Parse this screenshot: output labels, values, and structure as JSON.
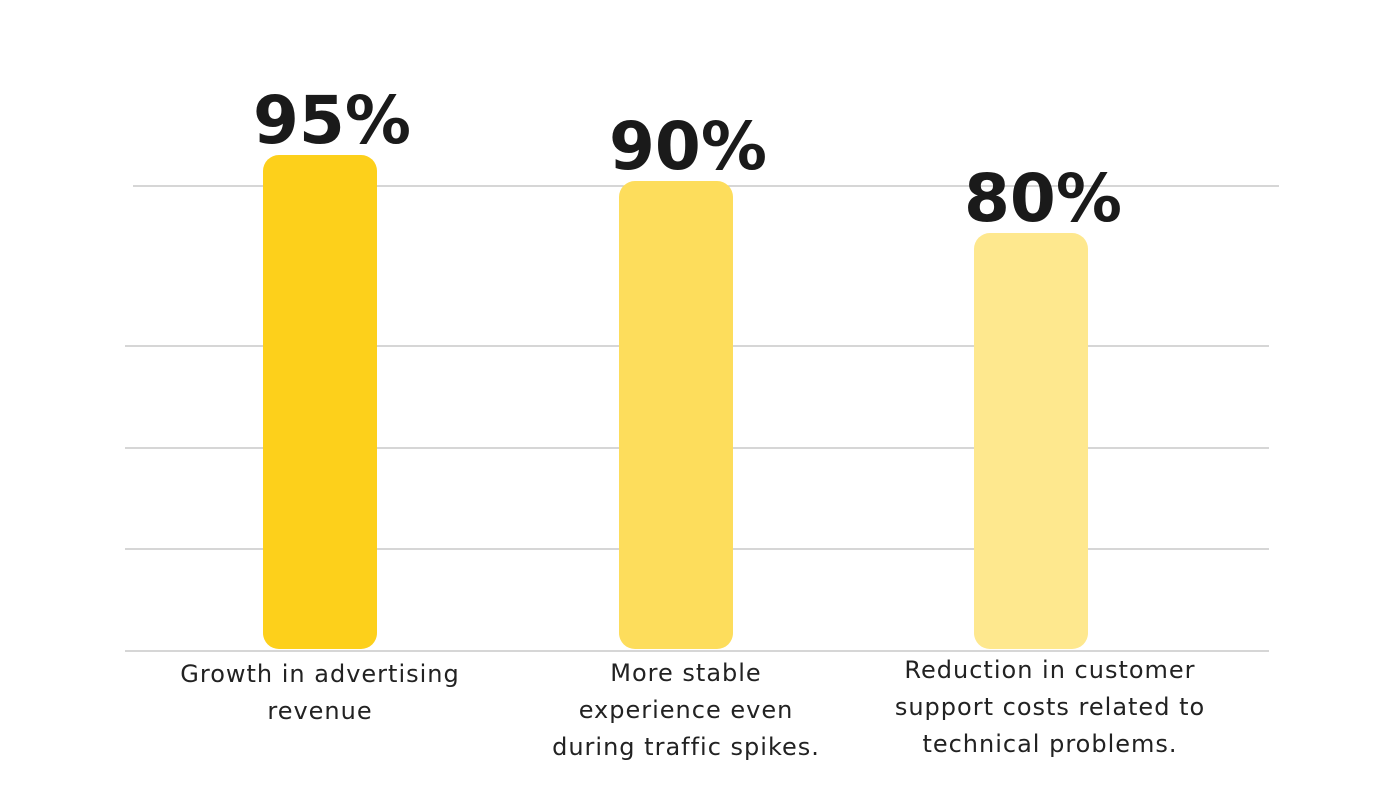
{
  "chart_data": {
    "type": "bar",
    "categories": [
      [
        "Growth in advertising",
        "revenue"
      ],
      [
        "More stable",
        "experience even",
        "during traffic spikes."
      ],
      [
        "Reduction in customer",
        "support costs related to",
        "technical problems."
      ]
    ],
    "values": [
      95,
      90,
      80
    ],
    "value_labels": [
      "95%",
      "90%",
      "80%"
    ],
    "bar_colors": [
      "#fdd01b",
      "#fddd5c",
      "#fee88e"
    ],
    "title": "",
    "xlabel": "",
    "ylabel": "",
    "grid": true,
    "legend": "none"
  }
}
